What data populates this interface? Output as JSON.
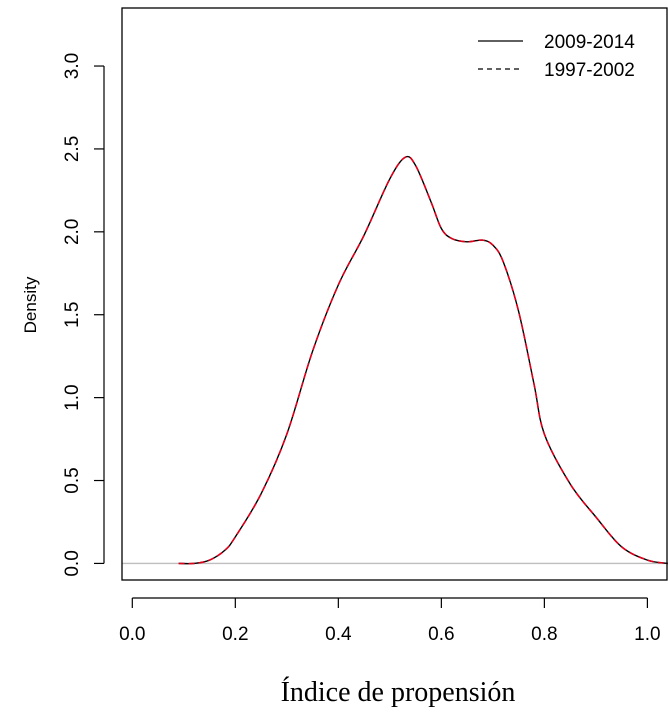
{
  "chart_data": {
    "type": "line",
    "title": "",
    "xlabel": "Índice de propensión",
    "ylabel": "Density",
    "xlim": [
      -0.02,
      1.04
    ],
    "ylim": [
      -0.1,
      3.35
    ],
    "x_ticks": [
      0.0,
      0.2,
      0.4,
      0.6,
      0.8,
      1.0
    ],
    "x_tick_labels": [
      "0.0",
      "0.2",
      "0.4",
      "0.6",
      "0.8",
      "1.0"
    ],
    "y_ticks": [
      0.0,
      0.5,
      1.0,
      1.5,
      2.0,
      2.5,
      3.0
    ],
    "y_tick_labels": [
      "0.0",
      "0.5",
      "1.0",
      "1.5",
      "2.0",
      "2.5",
      "3.0"
    ],
    "baseline_y": 0,
    "grid": false,
    "legend_position": "top-right",
    "series": [
      {
        "name": "2009-2014",
        "color": "#000000",
        "line_style": "solid",
        "x": [
          0.09,
          0.12,
          0.15,
          0.18,
          0.2,
          0.25,
          0.3,
          0.35,
          0.4,
          0.45,
          0.5,
          0.53,
          0.55,
          0.58,
          0.6,
          0.62,
          0.65,
          0.68,
          0.7,
          0.72,
          0.75,
          0.78,
          0.8,
          0.85,
          0.9,
          0.95,
          1.0,
          1.04
        ],
        "y": [
          0.0,
          0.0,
          0.02,
          0.08,
          0.16,
          0.42,
          0.78,
          1.28,
          1.68,
          1.98,
          2.32,
          2.45,
          2.4,
          2.18,
          2.02,
          1.96,
          1.94,
          1.95,
          1.92,
          1.82,
          1.52,
          1.08,
          0.78,
          0.48,
          0.28,
          0.1,
          0.02,
          0.0
        ]
      },
      {
        "name": "1997-2002",
        "color": "#e0001b",
        "line_style": "dashed",
        "x": [
          0.09,
          0.12,
          0.15,
          0.18,
          0.2,
          0.25,
          0.3,
          0.35,
          0.4,
          0.45,
          0.5,
          0.53,
          0.55,
          0.58,
          0.6,
          0.62,
          0.65,
          0.68,
          0.7,
          0.72,
          0.75,
          0.78,
          0.8,
          0.85,
          0.9,
          0.95,
          1.0,
          1.04
        ],
        "y": [
          0.0,
          0.0,
          0.02,
          0.08,
          0.16,
          0.42,
          0.78,
          1.28,
          1.68,
          1.98,
          2.32,
          2.45,
          2.4,
          2.18,
          2.02,
          1.96,
          1.94,
          1.95,
          1.92,
          1.82,
          1.52,
          1.08,
          0.78,
          0.48,
          0.28,
          0.1,
          0.02,
          0.0
        ]
      }
    ]
  }
}
